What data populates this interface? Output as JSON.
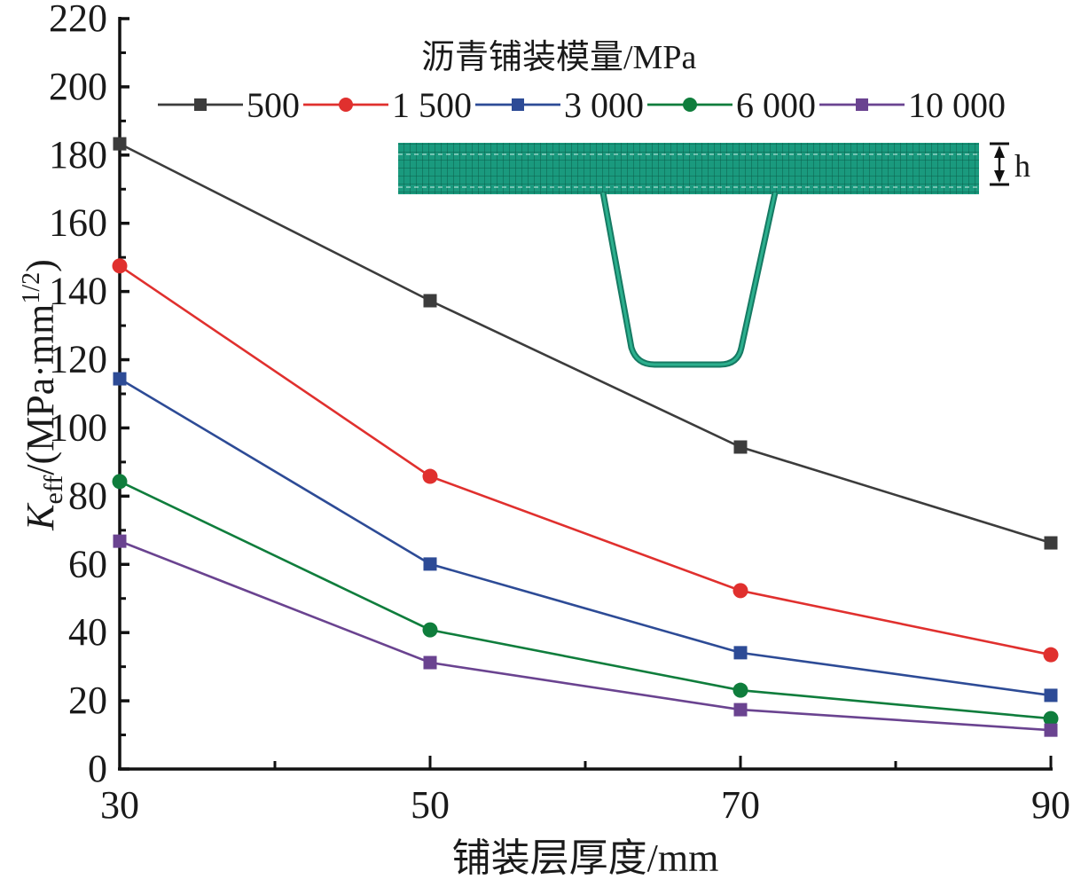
{
  "chart_data": {
    "type": "line",
    "title": "",
    "xlabel": "铺装层厚度/mm",
    "ylabel_parts": {
      "k": "K",
      "sub": "eff",
      "unit": "/(MPa·mm",
      "sup": "1/2",
      "close": ")"
    },
    "ylabel": "Keff/(MPa·mm1/2)",
    "x": [
      30,
      50,
      70,
      90
    ],
    "x_ticks": [
      "30",
      "50",
      "70",
      "90"
    ],
    "xlim": [
      30,
      90
    ],
    "y_ticks": [
      "0",
      "20",
      "40",
      "60",
      "80",
      "100",
      "120",
      "140",
      "160",
      "180",
      "200",
      "220"
    ],
    "ylim": [
      0,
      220
    ],
    "grid": false,
    "legend": {
      "title": "沥青铺装模量/MPa",
      "placement": "top",
      "orientation": "horizontal"
    },
    "series": [
      {
        "name": "500",
        "color": "#3c3c3c",
        "marker": "square",
        "values": [
          183.3,
          137.3,
          94.4,
          66.3
        ]
      },
      {
        "name": "1 500",
        "color": "#e0302e",
        "marker": "circle",
        "values": [
          147.5,
          85.8,
          52.3,
          33.5
        ]
      },
      {
        "name": "3 000",
        "color": "#2d4b96",
        "marker": "square",
        "values": [
          114.4,
          60.1,
          34.1,
          21.6
        ]
      },
      {
        "name": "6 000",
        "color": "#0f7d3c",
        "marker": "circle",
        "values": [
          84.3,
          40.8,
          23.1,
          14.8
        ]
      },
      {
        "name": "10 000",
        "color": "#6a4390",
        "marker": "square",
        "values": [
          66.8,
          31.2,
          17.4,
          11.4
        ]
      }
    ],
    "inset": {
      "description": "finite element mesh of deck with U-rib",
      "dimension_label": "h",
      "mesh_color": "#1a9a7e"
    }
  }
}
